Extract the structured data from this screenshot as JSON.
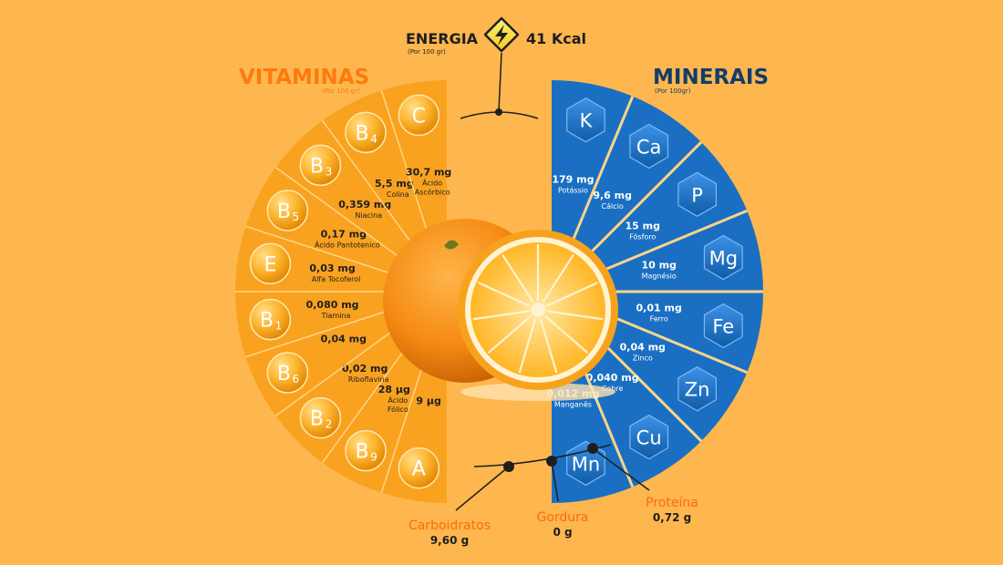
{
  "energy": {
    "label": "ENERGIA",
    "sub": "(Por 100 gr)",
    "value": "41 Kcal"
  },
  "vitamins": {
    "title": "VITAMINAS",
    "sub": "(Por 100 gr)",
    "items": [
      {
        "symbol": "A",
        "sub": "",
        "value": "9 µg",
        "name": ""
      },
      {
        "symbol": "B",
        "sub": "9",
        "value": "28  µg",
        "name": "Ácido",
        "name2": "Fólico"
      },
      {
        "symbol": "B",
        "sub": "2",
        "value": "0,02 mg",
        "name": "Riboflavina"
      },
      {
        "symbol": "B",
        "sub": "6",
        "value": "0,04 mg",
        "name": ""
      },
      {
        "symbol": "B",
        "sub": "1",
        "value": "0,080 mg",
        "name": "Tiamina"
      },
      {
        "symbol": "E",
        "sub": "",
        "value": "0,03 mg",
        "name": "Alfa Tocoferol"
      },
      {
        "symbol": "B",
        "sub": "5",
        "value": "0,17 mg",
        "name": "Ácido Pantotenico"
      },
      {
        "symbol": "B",
        "sub": "3",
        "value": "0,359 mg",
        "name": "Niacina"
      },
      {
        "symbol": "B",
        "sub": "4",
        "value": "5,5 mg",
        "name": "Colina"
      },
      {
        "symbol": "C",
        "sub": "",
        "value": "30,7 mg",
        "name": "Ácido",
        "name2": "Ascórbico"
      }
    ]
  },
  "minerals": {
    "title": "MINERAIS",
    "sub": "(Por 100gr)",
    "items": [
      {
        "symbol": "K",
        "value": "179 mg",
        "name": "Potássio"
      },
      {
        "symbol": "Ca",
        "value": "9,6 mg",
        "name": "Cálcio"
      },
      {
        "symbol": "P",
        "value": "15 mg",
        "name": "Fósforo"
      },
      {
        "symbol": "Mg",
        "value": "10 mg",
        "name": "Magnésio"
      },
      {
        "symbol": "Fe",
        "value": "0,01 mg",
        "name": "Ferro"
      },
      {
        "symbol": "Zn",
        "value": "0,04 mg",
        "name": "Zinco"
      },
      {
        "symbol": "Cu",
        "value": "0,040 mg",
        "name": "Cobre"
      },
      {
        "symbol": "Mn",
        "value": "0,012 mg",
        "name": "Manganês"
      }
    ]
  },
  "macros": [
    {
      "name": "Carboidratos",
      "value": "9,60 g"
    },
    {
      "name": "Gordura",
      "value": "0 g"
    },
    {
      "name": "Proteína",
      "value": "0,72 g"
    }
  ],
  "colors": {
    "background": "#FDB74E",
    "vitamin_fan": "#F9A21F",
    "vitamin_accent": "#FE7A0E",
    "mineral_fan": "#1A6FC3",
    "mineral_title": "#123D6B",
    "dark_text": "#1E1E1E"
  }
}
